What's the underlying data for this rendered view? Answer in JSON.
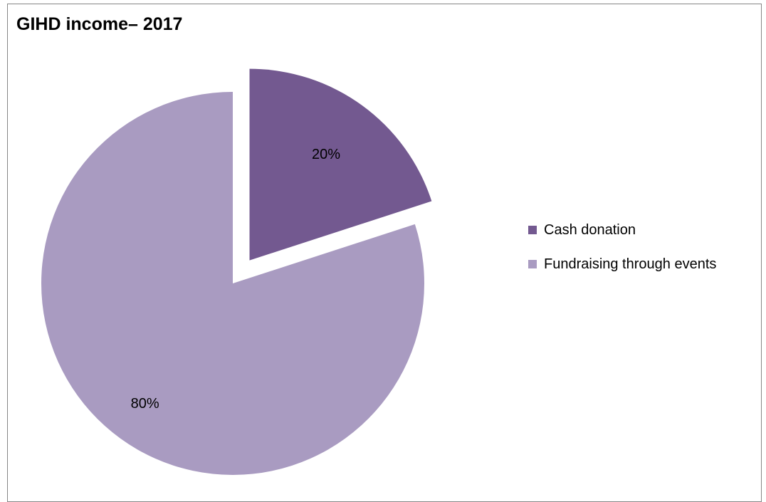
{
  "chart_data": {
    "type": "pie",
    "title": "GIHD income– 2017",
    "slices": [
      {
        "label": "Cash donation",
        "value": 20,
        "data_label": "20%",
        "color": "#735990",
        "exploded": true
      },
      {
        "label": "Fundraising through events",
        "value": 80,
        "data_label": "80%",
        "color": "#a99bc1",
        "exploded": false
      }
    ],
    "legend_position": "right",
    "start_angle_deg": 0,
    "direction": "clockwise"
  }
}
